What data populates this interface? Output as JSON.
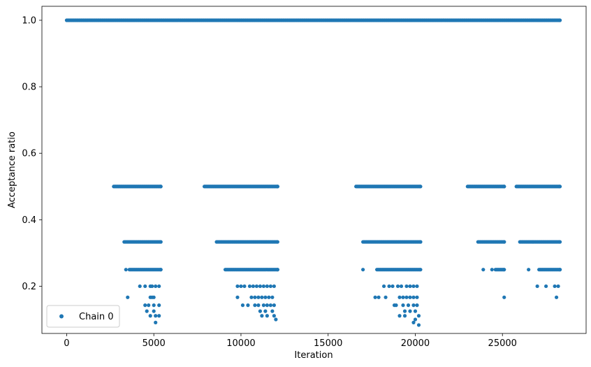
{
  "chart_data": {
    "type": "scatter",
    "xlabel": "Iteration",
    "ylabel": "Acceptance ratio",
    "xlim": [
      -1420,
      29800
    ],
    "ylim": [
      0.058,
      1.042
    ],
    "xticks": [
      0,
      5000,
      10000,
      15000,
      20000,
      25000
    ],
    "xtick_labels": [
      "0",
      "5000",
      "10000",
      "15000",
      "20000",
      "25000"
    ],
    "yticks": [
      0.2,
      0.4,
      0.6,
      0.8,
      1.0
    ],
    "ytick_labels": [
      "0.2",
      "0.4",
      "0.6",
      "0.8",
      "1.0"
    ],
    "grid": false,
    "legend": {
      "position": "lower-left",
      "entries": [
        "Chain 0"
      ]
    },
    "series": [
      {
        "name": "Chain 0",
        "color": "#1f77b4",
        "marker": "circle",
        "bands": [
          {
            "y": 1.0,
            "ranges": [
              [
                0,
                28300
              ]
            ]
          },
          {
            "y": 0.5,
            "ranges": [
              [
                2700,
                5400
              ],
              [
                7900,
                12100
              ],
              [
                16600,
                20300
              ],
              [
                23000,
                25100
              ],
              [
                25800,
                28300
              ]
            ]
          },
          {
            "y": 0.3333,
            "ranges": [
              [
                3300,
                5400
              ],
              [
                8600,
                12100
              ],
              [
                17000,
                20300
              ],
              [
                23600,
                25100
              ],
              [
                26000,
                28300
              ]
            ]
          },
          {
            "y": 0.25,
            "ranges": [
              [
                3600,
                5400
              ],
              [
                9100,
                12100
              ],
              [
                17800,
                20300
              ],
              [
                24600,
                25100
              ],
              [
                27100,
                28300
              ]
            ]
          }
        ],
        "points": [
          [
            3400,
            0.25
          ],
          [
            17000,
            0.25
          ],
          [
            23900,
            0.25
          ],
          [
            24400,
            0.25
          ],
          [
            26500,
            0.25
          ],
          [
            4200,
            0.2
          ],
          [
            4500,
            0.2
          ],
          [
            4800,
            0.2
          ],
          [
            4900,
            0.2
          ],
          [
            5100,
            0.2
          ],
          [
            5300,
            0.2
          ],
          [
            9800,
            0.2
          ],
          [
            10000,
            0.2
          ],
          [
            10200,
            0.2
          ],
          [
            10500,
            0.2
          ],
          [
            10700,
            0.2
          ],
          [
            10900,
            0.2
          ],
          [
            11100,
            0.2
          ],
          [
            11300,
            0.2
          ],
          [
            11500,
            0.2
          ],
          [
            11700,
            0.2
          ],
          [
            11900,
            0.2
          ],
          [
            18200,
            0.2
          ],
          [
            18500,
            0.2
          ],
          [
            18700,
            0.2
          ],
          [
            19000,
            0.2
          ],
          [
            19200,
            0.2
          ],
          [
            19500,
            0.2
          ],
          [
            19700,
            0.2
          ],
          [
            19900,
            0.2
          ],
          [
            20100,
            0.2
          ],
          [
            27000,
            0.2
          ],
          [
            27500,
            0.2
          ],
          [
            28000,
            0.2
          ],
          [
            28200,
            0.2
          ],
          [
            3500,
            0.1667
          ],
          [
            4800,
            0.1667
          ],
          [
            4900,
            0.1667
          ],
          [
            5000,
            0.1667
          ],
          [
            9800,
            0.1667
          ],
          [
            10600,
            0.1667
          ],
          [
            10800,
            0.1667
          ],
          [
            11000,
            0.1667
          ],
          [
            11200,
            0.1667
          ],
          [
            11400,
            0.1667
          ],
          [
            11600,
            0.1667
          ],
          [
            11800,
            0.1667
          ],
          [
            17700,
            0.1667
          ],
          [
            17900,
            0.1667
          ],
          [
            18300,
            0.1667
          ],
          [
            19100,
            0.1667
          ],
          [
            19300,
            0.1667
          ],
          [
            19500,
            0.1667
          ],
          [
            19700,
            0.1667
          ],
          [
            19900,
            0.1667
          ],
          [
            20100,
            0.1667
          ],
          [
            25100,
            0.1667
          ],
          [
            28100,
            0.1667
          ],
          [
            4500,
            0.1429
          ],
          [
            4700,
            0.1429
          ],
          [
            5000,
            0.1429
          ],
          [
            5300,
            0.1429
          ],
          [
            10100,
            0.1429
          ],
          [
            10400,
            0.1429
          ],
          [
            10800,
            0.1429
          ],
          [
            11000,
            0.1429
          ],
          [
            11300,
            0.1429
          ],
          [
            11500,
            0.1429
          ],
          [
            11700,
            0.1429
          ],
          [
            11900,
            0.1429
          ],
          [
            18800,
            0.1429
          ],
          [
            18900,
            0.1429
          ],
          [
            19300,
            0.1429
          ],
          [
            19600,
            0.1429
          ],
          [
            19900,
            0.1429
          ],
          [
            20100,
            0.1429
          ],
          [
            4600,
            0.125
          ],
          [
            5000,
            0.125
          ],
          [
            11100,
            0.125
          ],
          [
            11400,
            0.125
          ],
          [
            11800,
            0.125
          ],
          [
            19400,
            0.125
          ],
          [
            19700,
            0.125
          ],
          [
            20000,
            0.125
          ],
          [
            4800,
            0.1111
          ],
          [
            5100,
            0.1111
          ],
          [
            5300,
            0.1111
          ],
          [
            11200,
            0.1111
          ],
          [
            11500,
            0.1111
          ],
          [
            11900,
            0.1111
          ],
          [
            19100,
            0.1111
          ],
          [
            19400,
            0.1111
          ],
          [
            20200,
            0.1111
          ],
          [
            12000,
            0.1
          ],
          [
            20000,
            0.1
          ],
          [
            5100,
            0.0909
          ],
          [
            19900,
            0.0909
          ],
          [
            20200,
            0.0833
          ]
        ]
      }
    ]
  }
}
